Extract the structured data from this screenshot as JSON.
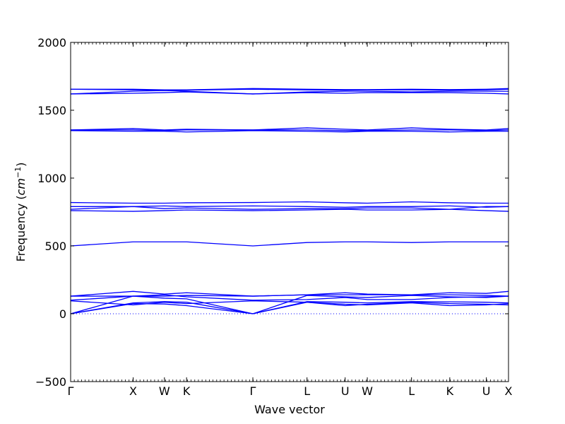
{
  "chart_data": {
    "type": "line",
    "title": "",
    "xlabel": "Wave vector",
    "ylabel_prefix": "Frequency (",
    "ylabel_math": "cm",
    "ylabel_sup": "−1",
    "ylabel_suffix": ")",
    "ylim": [
      -500,
      2000
    ],
    "yticks": [
      -500,
      0,
      500,
      1000,
      1500,
      2000
    ],
    "grid": false,
    "line_color": "#0000ff",
    "zero_line_color": "#0000ff",
    "xticks": [
      {
        "label": "Γ",
        "x": 0
      },
      {
        "label": "X",
        "x": 1
      },
      {
        "label": "W",
        "x": 1.5
      },
      {
        "label": "K",
        "x": 1.854
      },
      {
        "label": "Γ",
        "x": 2.914
      },
      {
        "label": "L",
        "x": 3.78
      },
      {
        "label": "U",
        "x": 4.39
      },
      {
        "label": "W",
        "x": 4.744
      },
      {
        "label": "L",
        "x": 5.451
      },
      {
        "label": "K",
        "x": 6.063
      },
      {
        "label": "U",
        "x": 6.648
      },
      {
        "label": "X",
        "x": 7.002
      }
    ],
    "series": [
      {
        "x": [
          0,
          1,
          1.5,
          1.854,
          2.914,
          3.78,
          4.39,
          4.744,
          5.451,
          6.063,
          6.648,
          7.002
        ],
        "y": [
          0,
          75,
          72,
          60,
          0,
          85,
          70,
          65,
          80,
          60,
          65,
          75
        ]
      },
      {
        "x": [
          0,
          1,
          1.5,
          1.854,
          2.914,
          3.78,
          4.39,
          4.744,
          5.451,
          6.063,
          6.648,
          7.002
        ],
        "y": [
          0,
          80,
          90,
          85,
          0,
          90,
          85,
          80,
          90,
          88,
          85,
          80
        ]
      },
      {
        "x": [
          0,
          1,
          1.5,
          1.854,
          2.914,
          3.78,
          4.39,
          4.744,
          5.451,
          6.063,
          6.648,
          7.002
        ],
        "y": [
          0,
          130,
          115,
          110,
          0,
          135,
          125,
          120,
          135,
          125,
          120,
          130
        ]
      },
      {
        "x": [
          0,
          1,
          1.5,
          1.854,
          2.914,
          3.78,
          4.39,
          4.744,
          5.451,
          6.063,
          6.648,
          7.002
        ],
        "y": [
          95,
          65,
          85,
          75,
          95,
          85,
          60,
          70,
          85,
          75,
          70,
          65
        ]
      },
      {
        "x": [
          0,
          1,
          1.5,
          1.854,
          2.914,
          3.78,
          4.39,
          4.744,
          5.451,
          6.063,
          6.648,
          7.002
        ],
        "y": [
          100,
          130,
          140,
          125,
          100,
          105,
          120,
          105,
          105,
          120,
          125,
          130
        ]
      },
      {
        "x": [
          0,
          1,
          1.5,
          1.854,
          2.914,
          3.78,
          4.39,
          4.744,
          5.451,
          6.063,
          6.648,
          7.002
        ],
        "y": [
          130,
          165,
          145,
          155,
          130,
          140,
          155,
          145,
          140,
          155,
          150,
          165
        ]
      },
      {
        "x": [
          0,
          1,
          1.5,
          1.854,
          2.914,
          3.78,
          4.39,
          4.744,
          5.451,
          6.063,
          6.648,
          7.002
        ],
        "y": [
          130,
          130,
          130,
          135,
          130,
          140,
          140,
          140,
          140,
          140,
          135,
          130
        ]
      },
      {
        "x": [
          0,
          1,
          1.5,
          1.854,
          2.914,
          3.78,
          4.39,
          4.744,
          5.451,
          6.063,
          6.648,
          7.002
        ],
        "y": [
          500,
          530,
          530,
          530,
          500,
          525,
          530,
          530,
          525,
          530,
          530,
          530
        ]
      },
      {
        "x": [
          0,
          1,
          1.5,
          1.854,
          2.914,
          3.78,
          4.39,
          4.744,
          5.451,
          6.063,
          6.648,
          7.002
        ],
        "y": [
          760,
          755,
          760,
          765,
          760,
          765,
          770,
          765,
          765,
          770,
          760,
          755
        ]
      },
      {
        "x": [
          0,
          1,
          1.5,
          1.854,
          2.914,
          3.78,
          4.39,
          4.744,
          5.451,
          6.063,
          6.648,
          7.002
        ],
        "y": [
          770,
          790,
          775,
          780,
          770,
          775,
          775,
          780,
          780,
          770,
          790,
          790
        ]
      },
      {
        "x": [
          0,
          1,
          1.5,
          1.854,
          2.914,
          3.78,
          4.39,
          4.744,
          5.451,
          6.063,
          6.648,
          7.002
        ],
        "y": [
          790,
          790,
          795,
          790,
          795,
          790,
          785,
          790,
          790,
          795,
          785,
          790
        ]
      },
      {
        "x": [
          0,
          1,
          1.5,
          1.854,
          2.914,
          3.78,
          4.39,
          4.744,
          5.451,
          6.063,
          6.648,
          7.002
        ],
        "y": [
          820,
          815,
          815,
          818,
          820,
          825,
          818,
          815,
          825,
          818,
          815,
          815
        ]
      },
      {
        "x": [
          0,
          1,
          1.5,
          1.854,
          2.914,
          3.78,
          4.39,
          4.744,
          5.451,
          6.063,
          6.648,
          7.002
        ],
        "y": [
          1350,
          1345,
          1345,
          1340,
          1350,
          1345,
          1340,
          1345,
          1345,
          1340,
          1345,
          1345
        ]
      },
      {
        "x": [
          0,
          1,
          1.5,
          1.854,
          2.914,
          3.78,
          4.39,
          4.744,
          5.451,
          6.063,
          6.648,
          7.002
        ],
        "y": [
          1355,
          1355,
          1350,
          1355,
          1355,
          1355,
          1350,
          1350,
          1355,
          1355,
          1350,
          1355
        ]
      },
      {
        "x": [
          0,
          1,
          1.5,
          1.854,
          2.914,
          3.78,
          4.39,
          4.744,
          5.451,
          6.063,
          6.648,
          7.002
        ],
        "y": [
          1355,
          1365,
          1355,
          1360,
          1355,
          1370,
          1360,
          1355,
          1370,
          1360,
          1355,
          1365
        ]
      },
      {
        "x": [
          0,
          1,
          1.5,
          1.854,
          2.914,
          3.78,
          4.39,
          4.744,
          5.451,
          6.063,
          6.648,
          7.002
        ],
        "y": [
          1620,
          1625,
          1630,
          1635,
          1620,
          1630,
          1625,
          1630,
          1630,
          1630,
          1625,
          1620
        ]
      },
      {
        "x": [
          0,
          1,
          1.5,
          1.854,
          2.914,
          3.78,
          4.39,
          4.744,
          5.451,
          6.063,
          6.648,
          7.002
        ],
        "y": [
          1620,
          1640,
          1645,
          1640,
          1620,
          1635,
          1640,
          1640,
          1635,
          1640,
          1640,
          1640
        ]
      },
      {
        "x": [
          0,
          1,
          1.5,
          1.854,
          2.914,
          3.78,
          4.39,
          4.744,
          5.451,
          6.063,
          6.648,
          7.002
        ],
        "y": [
          1655,
          1650,
          1648,
          1648,
          1655,
          1650,
          1648,
          1650,
          1650,
          1648,
          1650,
          1655
        ]
      },
      {
        "x": [
          0,
          1,
          1.5,
          1.854,
          2.914,
          3.78,
          4.39,
          4.744,
          5.451,
          6.063,
          6.648,
          7.002
        ],
        "y": [
          1655,
          1655,
          1650,
          1650,
          1660,
          1655,
          1652,
          1652,
          1655,
          1652,
          1655,
          1660
        ]
      }
    ]
  }
}
